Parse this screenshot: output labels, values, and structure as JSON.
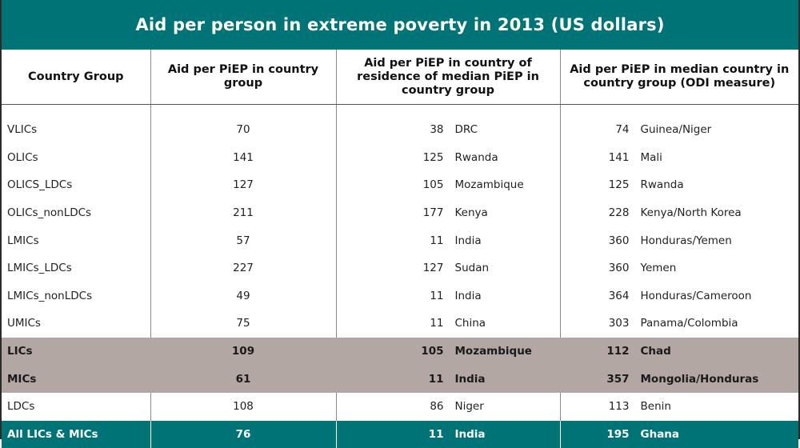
{
  "title": "Aid per person in extreme poverty in 2013 (US dollars)",
  "headers": {
    "country_group": "Country Group",
    "aid_group": "Aid per PiEP in country group",
    "aid_median_residence": "Aid per PiEP in country of residence of median PiEP in country group",
    "aid_median_country": "Aid per PiEP in median country in country group (ODI measure)"
  },
  "rows": [
    {
      "group": "VLICs",
      "aid": "70",
      "res_val": "38",
      "res_country": "DRC",
      "med_val": "74",
      "med_country": "Guinea/Niger"
    },
    {
      "group": "OLICs",
      "aid": "141",
      "res_val": "125",
      "res_country": "Rwanda",
      "med_val": "141",
      "med_country": "Mali"
    },
    {
      "group": "OLICS_LDCs",
      "aid": "127",
      "res_val": "105",
      "res_country": "Mozambique",
      "med_val": "125",
      "med_country": "Rwanda"
    },
    {
      "group": "OLICs_nonLDCs",
      "aid": "211",
      "res_val": "177",
      "res_country": "Kenya",
      "med_val": "228",
      "med_country": "Kenya/North Korea"
    },
    {
      "group": "LMICs",
      "aid": "57",
      "res_val": "11",
      "res_country": "India",
      "med_val": "360",
      "med_country": "Honduras/Yemen"
    },
    {
      "group": "LMICs_LDCs",
      "aid": "227",
      "res_val": "127",
      "res_country": "Sudan",
      "med_val": "360",
      "med_country": "Yemen"
    },
    {
      "group": "LMICs_nonLDCs",
      "aid": "49",
      "res_val": "11",
      "res_country": "India",
      "med_val": "364",
      "med_country": "Honduras/Cameroon"
    },
    {
      "group": "UMICs",
      "aid": "75",
      "res_val": "11",
      "res_country": "China",
      "med_val": "303",
      "med_country": "Panama/Colombia"
    },
    {
      "group": "LICs",
      "aid": "109",
      "res_val": "105",
      "res_country": "Mozambique",
      "med_val": "112",
      "med_country": "Chad"
    },
    {
      "group": "MICs",
      "aid": "61",
      "res_val": "11",
      "res_country": "India",
      "med_val": "357",
      "med_country": "Mongolia/Honduras"
    },
    {
      "group": "LDCs",
      "aid": "108",
      "res_val": "86",
      "res_country": "Niger",
      "med_val": "113",
      "med_country": "Benin"
    },
    {
      "group": "All LICs & MICs",
      "aid": "76",
      "res_val": "11",
      "res_country": "India",
      "med_val": "195",
      "med_country": "Ghana"
    }
  ],
  "colors": {
    "header_band": "#007377",
    "highlight": "#b3a7a3"
  }
}
